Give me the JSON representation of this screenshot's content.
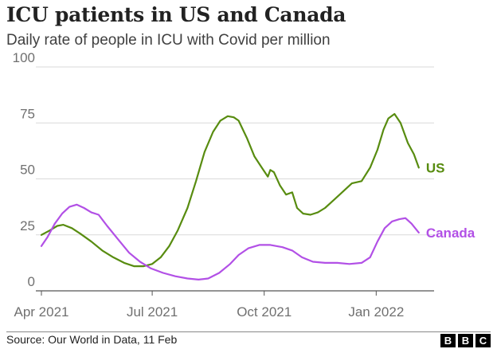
{
  "title": "ICU patients in US and Canada",
  "subtitle": "Daily rate of people in ICU with Covid per million",
  "source": "Source: Our World in Data, 11 Feb",
  "logo": "BBC",
  "colors": {
    "US": "#588c10",
    "Canada": "#b250e6",
    "grid": "#d9d9d9",
    "axis": "#555555"
  },
  "chart_data": {
    "type": "line",
    "title": "ICU patients in US and Canada",
    "subtitle": "Daily rate of people in ICU with Covid per million",
    "ylim": [
      0,
      100
    ],
    "yticks": [
      0,
      25,
      50,
      75,
      100
    ],
    "xlim": [
      "2021-04-01",
      "2022-02-11"
    ],
    "xticks": [
      {
        "date": "2021-04-01",
        "label": "Apr 2021"
      },
      {
        "date": "2021-07-01",
        "label": "Jul 2021"
      },
      {
        "date": "2021-10-01",
        "label": "Oct 2021"
      },
      {
        "date": "2022-01-01",
        "label": "Jan 2022"
      }
    ],
    "grid": true,
    "series": [
      {
        "name": "US",
        "points": [
          [
            "2021-04-01",
            25
          ],
          [
            "2021-04-08",
            27
          ],
          [
            "2021-04-14",
            29
          ],
          [
            "2021-04-19",
            29.5
          ],
          [
            "2021-04-26",
            28
          ],
          [
            "2021-05-03",
            25.5
          ],
          [
            "2021-05-12",
            22
          ],
          [
            "2021-05-21",
            18
          ],
          [
            "2021-05-30",
            15
          ],
          [
            "2021-06-08",
            12.5
          ],
          [
            "2021-06-16",
            11
          ],
          [
            "2021-06-24",
            11
          ],
          [
            "2021-07-01",
            12
          ],
          [
            "2021-07-08",
            15
          ],
          [
            "2021-07-15",
            20
          ],
          [
            "2021-07-22",
            27
          ],
          [
            "2021-07-30",
            37
          ],
          [
            "2021-08-06",
            49
          ],
          [
            "2021-08-13",
            62
          ],
          [
            "2021-08-20",
            71
          ],
          [
            "2021-08-26",
            76
          ],
          [
            "2021-09-01",
            78
          ],
          [
            "2021-09-06",
            77.5
          ],
          [
            "2021-09-10",
            76
          ],
          [
            "2021-09-17",
            68
          ],
          [
            "2021-09-23",
            60
          ],
          [
            "2021-09-29",
            55
          ],
          [
            "2021-10-04",
            51
          ],
          [
            "2021-10-06",
            54
          ],
          [
            "2021-10-09",
            53
          ],
          [
            "2021-10-14",
            47
          ],
          [
            "2021-10-19",
            43
          ],
          [
            "2021-10-24",
            44
          ],
          [
            "2021-10-28",
            37
          ],
          [
            "2021-11-02",
            34.5
          ],
          [
            "2021-11-08",
            34
          ],
          [
            "2021-11-14",
            35
          ],
          [
            "2021-11-20",
            37
          ],
          [
            "2021-11-28",
            41
          ],
          [
            "2021-12-06",
            45
          ],
          [
            "2021-12-12",
            48
          ],
          [
            "2021-12-20",
            49
          ],
          [
            "2021-12-27",
            55
          ],
          [
            "2022-01-02",
            63
          ],
          [
            "2022-01-07",
            72
          ],
          [
            "2022-01-11",
            77
          ],
          [
            "2022-01-16",
            79
          ],
          [
            "2022-01-21",
            75
          ],
          [
            "2022-01-27",
            66
          ],
          [
            "2022-02-01",
            61
          ],
          [
            "2022-02-05",
            55
          ]
        ]
      },
      {
        "name": "Canada",
        "points": [
          [
            "2021-04-01",
            20
          ],
          [
            "2021-04-06",
            24
          ],
          [
            "2021-04-12",
            30
          ],
          [
            "2021-04-18",
            34.5
          ],
          [
            "2021-04-24",
            37.5
          ],
          [
            "2021-04-30",
            38.5
          ],
          [
            "2021-05-06",
            37
          ],
          [
            "2021-05-12",
            35
          ],
          [
            "2021-05-18",
            34
          ],
          [
            "2021-05-25",
            29
          ],
          [
            "2021-06-03",
            23
          ],
          [
            "2021-06-12",
            17
          ],
          [
            "2021-06-21",
            13
          ],
          [
            "2021-06-30",
            10
          ],
          [
            "2021-07-10",
            8
          ],
          [
            "2021-07-20",
            6.5
          ],
          [
            "2021-07-30",
            5.5
          ],
          [
            "2021-08-08",
            5
          ],
          [
            "2021-08-16",
            5.5
          ],
          [
            "2021-08-25",
            8
          ],
          [
            "2021-09-03",
            12
          ],
          [
            "2021-09-10",
            16
          ],
          [
            "2021-09-18",
            19
          ],
          [
            "2021-09-27",
            20.5
          ],
          [
            "2021-10-06",
            20.5
          ],
          [
            "2021-10-16",
            19.5
          ],
          [
            "2021-10-24",
            18
          ],
          [
            "2021-11-01",
            15
          ],
          [
            "2021-11-10",
            13
          ],
          [
            "2021-11-20",
            12.5
          ],
          [
            "2021-11-30",
            12.5
          ],
          [
            "2021-12-10",
            12
          ],
          [
            "2021-12-20",
            12.5
          ],
          [
            "2021-12-27",
            15
          ],
          [
            "2022-01-02",
            22
          ],
          [
            "2022-01-08",
            28
          ],
          [
            "2022-01-14",
            31
          ],
          [
            "2022-01-20",
            32
          ],
          [
            "2022-01-25",
            32.5
          ],
          [
            "2022-01-30",
            30
          ],
          [
            "2022-02-05",
            26
          ]
        ]
      }
    ]
  }
}
